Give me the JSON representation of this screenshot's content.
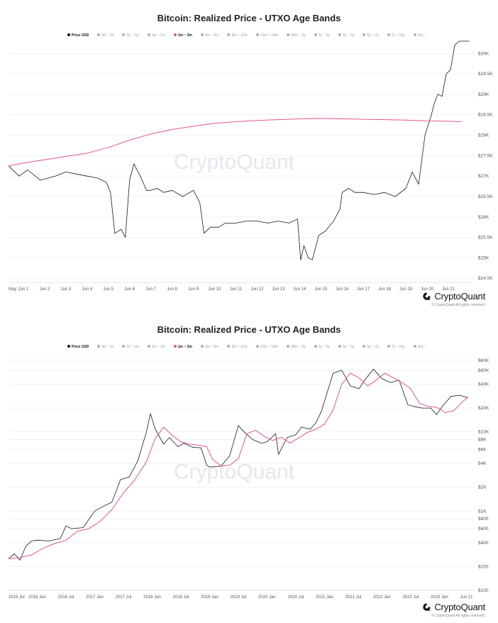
{
  "watermark": "CryptoQuant",
  "brand": {
    "name": "CryptoQuant",
    "rights": "© CryptoQuant All rights reserved."
  },
  "legend": [
    {
      "label": "Price USD",
      "state": "active"
    },
    {
      "label": "0d ~ 1d",
      "state": "off"
    },
    {
      "label": "1d ~ 1w",
      "state": "off"
    },
    {
      "label": "1w ~ 1m",
      "state": "off"
    },
    {
      "label": "1m ~ 3m",
      "state": "pink"
    },
    {
      "label": "3m ~ 6m",
      "state": "off"
    },
    {
      "label": "6m ~ 12m",
      "state": "off"
    },
    {
      "label": "12m ~ 18m",
      "state": "off"
    },
    {
      "label": "18m ~ 2y",
      "state": "off"
    },
    {
      "label": "2y ~ 3y",
      "state": "off"
    },
    {
      "label": "3y ~ 5y",
      "state": "off"
    },
    {
      "label": "5y ~ 7y",
      "state": "off"
    },
    {
      "label": "7y ~ 10y",
      "state": "off"
    },
    {
      "label": "10y ~",
      "state": "off"
    }
  ],
  "colors": {
    "price": "#1a1a1a",
    "band": "#e0568e",
    "grid": "#ececec",
    "axis_text": "#555555"
  },
  "chart_data": [
    {
      "type": "line",
      "title": "Bitcoin: Realized Price - UTXO Age Bands",
      "x_ticks": [
        "May ...",
        "Jun 1",
        "Jun 2",
        "Jun 3",
        "Jun 4",
        "Jun 5",
        "Jun 6",
        "Jun 7",
        "Jun 8",
        "Jun 9",
        "Jun 10",
        "Jun 11",
        "Jun 12",
        "Jun 13",
        "Jun 14",
        "Jun 15",
        "Jun 16",
        "Jun 17",
        "Jun 18",
        "Jun 19",
        "Jun 20",
        "Jun 21"
      ],
      "x_tick_pos": [
        0.3,
        1,
        2,
        3,
        4,
        5,
        6,
        7,
        8,
        9,
        10,
        11,
        12,
        13,
        14,
        15,
        16,
        17,
        18,
        19,
        20,
        21
      ],
      "xlim": [
        0.3,
        22.2
      ],
      "y_scale": "linear",
      "ylim": [
        24400,
        30300
      ],
      "y_ticks": [
        24500,
        25000,
        25500,
        26000,
        26500,
        27000,
        27500,
        28000,
        28500,
        29000,
        29500,
        30000
      ],
      "y_tick_labels": [
        "$24.5K",
        "$25K",
        "$25.5K",
        "$26K",
        "$26.5K",
        "$27K",
        "$27.5K",
        "$28K",
        "$28.5K",
        "$29K",
        "$29.5K",
        "$30K"
      ],
      "series": [
        {
          "name": "Price USD",
          "x": [
            0.3,
            0.8,
            1.2,
            1.8,
            2.5,
            3.0,
            3.5,
            4.0,
            4.5,
            4.9,
            5.1,
            5.3,
            5.6,
            5.8,
            6.0,
            6.2,
            6.5,
            6.8,
            7.0,
            7.3,
            7.6,
            8.0,
            8.5,
            9.0,
            9.3,
            9.5,
            9.8,
            10.2,
            10.5,
            11.0,
            11.5,
            12.0,
            12.5,
            13.0,
            13.5,
            13.9,
            14.05,
            14.2,
            14.4,
            14.6,
            14.9,
            15.2,
            15.6,
            15.9,
            16.0,
            16.3,
            16.6,
            17.0,
            17.5,
            18.0,
            18.5,
            19.0,
            19.3,
            19.6,
            19.9,
            20.2,
            20.35,
            20.5,
            20.7,
            20.9,
            21.1,
            21.3,
            21.5,
            21.8,
            22.0
          ],
          "y": [
            27250,
            27000,
            27150,
            26900,
            27000,
            27100,
            27050,
            27000,
            26950,
            26850,
            26600,
            25600,
            25700,
            25500,
            26900,
            27300,
            27000,
            26650,
            26650,
            26700,
            26600,
            26650,
            26500,
            26650,
            26350,
            25600,
            25750,
            25750,
            25850,
            25850,
            25900,
            25900,
            25850,
            25900,
            25850,
            25950,
            24950,
            25300,
            25000,
            24950,
            25550,
            25650,
            25900,
            26200,
            26600,
            26700,
            26600,
            26600,
            26550,
            26600,
            26500,
            26700,
            27100,
            26800,
            28000,
            28500,
            28800,
            29000,
            28950,
            29500,
            29600,
            30200,
            30300,
            30300,
            30300
          ]
        },
        {
          "name": "1m ~ 3m",
          "x": [
            0.3,
            1,
            2,
            3,
            4,
            5,
            6,
            7,
            8,
            9,
            10,
            11,
            12,
            13,
            14,
            15,
            16,
            17,
            18,
            19,
            20,
            21,
            21.6
          ],
          "y": [
            27250,
            27320,
            27400,
            27480,
            27560,
            27700,
            27880,
            28030,
            28140,
            28220,
            28290,
            28330,
            28360,
            28380,
            28400,
            28410,
            28400,
            28390,
            28380,
            28370,
            28350,
            28340,
            28330
          ]
        }
      ]
    },
    {
      "type": "line",
      "title": "Bitcoin: Realized Price - UTXO Age Bands",
      "x_ticks": [
        "2015 Jul",
        "2016 Jan",
        "2016 Jul",
        "2017 Jan",
        "2017 Jul",
        "2018 Jan",
        "2018 Jul",
        "2019 Jan",
        "2019 Jul",
        "2020 Jan",
        "2020 Jul",
        "2021 Jan",
        "2021 Jul",
        "2022 Jan",
        "2022 Jul",
        "2023 Jan",
        "Jun 21"
      ],
      "x_tick_pos": [
        2015.5,
        2016.0,
        2016.5,
        2017.0,
        2017.5,
        2018.0,
        2018.5,
        2019.0,
        2019.5,
        2020.0,
        2020.5,
        2021.0,
        2021.5,
        2022.0,
        2022.5,
        2023.0,
        2023.47
      ],
      "xlim": [
        2015.5,
        2023.6
      ],
      "y_scale": "log",
      "ylim": [
        100,
        100000
      ],
      "y_ticks": [
        100,
        200,
        400,
        600,
        800,
        1000,
        2000,
        4000,
        6000,
        8000,
        10000,
        20000,
        40000,
        60000,
        80000
      ],
      "y_tick_labels": [
        "$100",
        "$200",
        "$400",
        "$600",
        "$800",
        "$1K",
        "$2K",
        "$4K",
        "$6K",
        "$8K",
        "$10K",
        "$20K",
        "$40K",
        "$60K",
        "$80K"
      ],
      "series": [
        {
          "name": "Price USD",
          "x": [
            2015.5,
            2015.6,
            2015.7,
            2015.8,
            2015.9,
            2016.0,
            2016.2,
            2016.4,
            2016.5,
            2016.6,
            2016.8,
            2017.0,
            2017.1,
            2017.3,
            2017.45,
            2017.6,
            2017.75,
            2017.9,
            2017.97,
            2018.05,
            2018.2,
            2018.3,
            2018.45,
            2018.55,
            2018.7,
            2018.85,
            2018.95,
            2019.0,
            2019.2,
            2019.35,
            2019.5,
            2019.6,
            2019.75,
            2019.9,
            2020.0,
            2020.15,
            2020.2,
            2020.35,
            2020.5,
            2020.6,
            2020.75,
            2020.85,
            2020.95,
            2021.05,
            2021.15,
            2021.3,
            2021.45,
            2021.6,
            2021.7,
            2021.85,
            2022.0,
            2022.15,
            2022.3,
            2022.45,
            2022.55,
            2022.7,
            2022.85,
            2022.95,
            2023.05,
            2023.2,
            2023.35,
            2023.5
          ],
          "y": [
            250,
            290,
            240,
            360,
            420,
            430,
            420,
            450,
            650,
            600,
            620,
            1000,
            1100,
            1300,
            2500,
            2700,
            4300,
            10000,
            17000,
            11000,
            7000,
            8500,
            6500,
            7200,
            6400,
            6300,
            3800,
            3600,
            3700,
            5000,
            12000,
            10000,
            8000,
            7200,
            7500,
            9500,
            5200,
            8500,
            9200,
            11500,
            10800,
            13000,
            18500,
            32000,
            55000,
            60000,
            38000,
            35000,
            45000,
            62000,
            47000,
            42000,
            45000,
            22000,
            21000,
            20000,
            20000,
            16500,
            21000,
            28000,
            29000,
            27000
          ]
        },
        {
          "name": "1m ~ 3m",
          "x": [
            2015.5,
            2015.7,
            2015.9,
            2016.1,
            2016.3,
            2016.5,
            2016.7,
            2016.9,
            2017.1,
            2017.3,
            2017.5,
            2017.7,
            2017.9,
            2018.05,
            2018.2,
            2018.35,
            2018.5,
            2018.65,
            2018.8,
            2018.95,
            2019.05,
            2019.2,
            2019.35,
            2019.5,
            2019.65,
            2019.8,
            2019.95,
            2020.1,
            2020.25,
            2020.4,
            2020.55,
            2020.7,
            2020.85,
            2021.0,
            2021.15,
            2021.3,
            2021.45,
            2021.6,
            2021.75,
            2021.9,
            2022.05,
            2022.2,
            2022.35,
            2022.5,
            2022.65,
            2022.8,
            2022.95,
            2023.1,
            2023.25,
            2023.4,
            2023.5
          ],
          "y": [
            250,
            260,
            280,
            340,
            390,
            430,
            560,
            600,
            750,
            1050,
            1700,
            2500,
            4200,
            8200,
            11500,
            9000,
            7500,
            7000,
            6800,
            6500,
            4500,
            3700,
            3800,
            4600,
            9500,
            10500,
            8800,
            7800,
            8500,
            7200,
            8400,
            9800,
            10800,
            12500,
            19000,
            40000,
            55000,
            48000,
            38000,
            45000,
            55000,
            48000,
            42000,
            35000,
            23000,
            21000,
            20500,
            17500,
            18500,
            24000,
            27500
          ]
        }
      ]
    }
  ]
}
